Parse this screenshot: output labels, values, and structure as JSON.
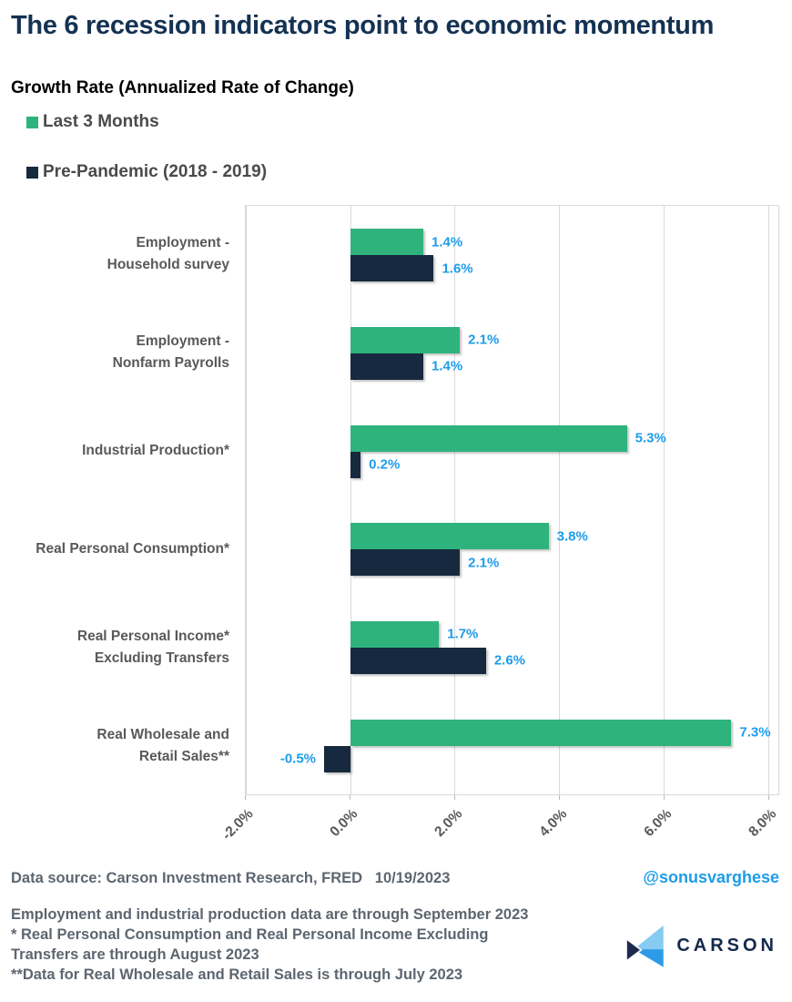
{
  "colors": {
    "title": "#143253",
    "accent": "#1e9ce9",
    "green": "#2eb37c",
    "navy": "#16293e",
    "grid": "#d9d9d9",
    "gray": "#595959",
    "notesgray": "#5d6670",
    "legendgray": "#4a4a4a",
    "logo_light": "#85cbf2",
    "logo_mid": "#2d9ae8",
    "logo_dark": "#1c2b4d",
    "brand_navy": "#14294b"
  },
  "chart_data": {
    "type": "bar",
    "orientation": "horizontal",
    "title": "The 6 recession indicators point to economic momentum",
    "subtitle": "Growth Rate (Annualized Rate of Change)",
    "categories": [
      [
        "Employment -",
        "Household survey"
      ],
      [
        "Employment -",
        "Nonfarm Payrolls"
      ],
      [
        "Industrial Production*"
      ],
      [
        "Real Personal Consumption*"
      ],
      [
        "Real Personal Income*",
        "Excluding Transfers"
      ],
      [
        "Real Wholesale and",
        "Retail Sales**"
      ]
    ],
    "series": [
      {
        "name": "Last 3 Months",
        "color": "#2eb37c",
        "values": [
          1.4,
          2.1,
          5.3,
          3.8,
          1.7,
          7.3
        ],
        "labels": [
          "1.4%",
          "2.1%",
          "5.3%",
          "3.8%",
          "1.7%",
          "7.3%"
        ]
      },
      {
        "name": "Pre-Pandemic (2018 - 2019)",
        "color": "#16293e",
        "values": [
          1.6,
          1.4,
          0.2,
          2.1,
          2.6,
          -0.5
        ],
        "labels": [
          "1.6%",
          "1.4%",
          "0.2%",
          "2.1%",
          "2.6%",
          "-0.5%"
        ]
      }
    ],
    "xlim": [
      -2,
      8.2
    ],
    "x_ticks": [
      {
        "value": -2,
        "label": "-2.0%"
      },
      {
        "value": 0,
        "label": "0.0%"
      },
      {
        "value": 2,
        "label": "2.0%"
      },
      {
        "value": 4,
        "label": "4.0%"
      },
      {
        "value": 6,
        "label": "6.0%"
      },
      {
        "value": 8,
        "label": "8.0%"
      }
    ],
    "grid": true,
    "legend_position": "top-left",
    "data_label_color": "#1e9ce9"
  },
  "footer": {
    "source": "Data source: Carson Investment Research, FRED   10/19/2023",
    "handle": "@sonusvarghese",
    "notes": [
      "Employment and industrial production data are through September 2023",
      "* Real Personal Consumption and Real Personal Income Excluding",
      "Transfers are through August 2023",
      "**Data for Real Wholesale and Retail Sales is through July 2023"
    ],
    "brand": "CARSON"
  }
}
